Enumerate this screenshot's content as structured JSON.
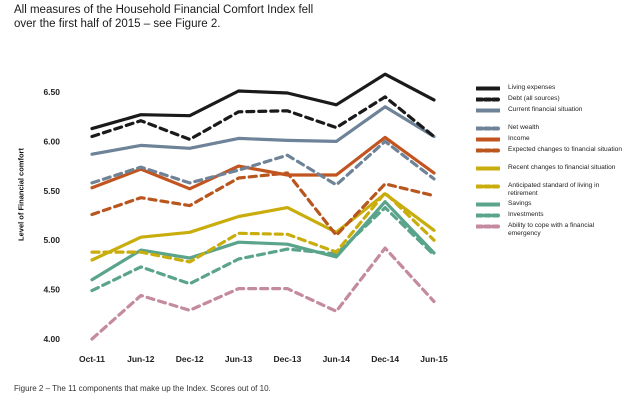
{
  "intro_text": "All measures of the Household Financial Comfort Index fell over the first half of 2015 – see Figure 2.",
  "caption": "Figure 2 – The 11 components that make up the Index. Scores out of 10.",
  "chart_data": {
    "type": "line",
    "title": "",
    "xlabel": "",
    "ylabel": "Level of Financial comfort",
    "ylim": [
      4.0,
      6.5
    ],
    "yticks": [
      "4.00",
      "4.50",
      "5.00",
      "5.50",
      "6.00",
      "6.50"
    ],
    "categories": [
      "Oct-11",
      "Jun-12",
      "Dec-12",
      "Jun-13",
      "Dec-13",
      "Jun-14",
      "Dec-14",
      "Jun-15"
    ],
    "grid": false,
    "legend_position": "right",
    "series": [
      {
        "name": "Living expenses",
        "color": "#1a1a1a",
        "style": "solid",
        "values": [
          6.13,
          6.27,
          6.26,
          6.51,
          6.49,
          6.37,
          6.68,
          6.42
        ]
      },
      {
        "name": "Debt (all sources)",
        "color": "#1a1a1a",
        "style": "dashed",
        "values": [
          6.05,
          6.21,
          6.02,
          6.3,
          6.31,
          6.14,
          6.45,
          6.05
        ]
      },
      {
        "name": "Current financial situation",
        "color": "#6e8398",
        "style": "solid",
        "values": [
          5.87,
          5.96,
          5.93,
          6.03,
          6.01,
          6.0,
          6.35,
          6.05
        ]
      },
      {
        "name": "Net wealth",
        "color": "#6e8398",
        "style": "dashed",
        "values": [
          5.58,
          5.74,
          5.58,
          5.71,
          5.86,
          5.56,
          6.0,
          5.62
        ]
      },
      {
        "name": "Income",
        "color": "#c2541f",
        "style": "solid",
        "values": [
          5.53,
          5.72,
          5.52,
          5.75,
          5.66,
          5.66,
          6.04,
          5.68
        ]
      },
      {
        "name": "Expected changes to financial situation",
        "color": "#b8561e",
        "style": "dashed",
        "values": [
          5.26,
          5.43,
          5.35,
          5.63,
          5.68,
          5.05,
          5.57,
          5.45
        ]
      },
      {
        "name": "Recent changes to financial situation",
        "color": "#c8ad0c",
        "style": "solid",
        "values": [
          4.8,
          5.03,
          5.08,
          5.24,
          5.33,
          5.08,
          5.47,
          5.1
        ]
      },
      {
        "name": "Anticipated standard of living in retirement",
        "color": "#c8ad0c",
        "style": "dashed",
        "values": [
          4.88,
          4.88,
          4.78,
          5.07,
          5.06,
          4.88,
          5.48,
          5.0
        ]
      },
      {
        "name": "Savings",
        "color": "#5aa48b",
        "style": "solid",
        "values": [
          4.6,
          4.9,
          4.82,
          4.98,
          4.96,
          4.83,
          5.39,
          4.87
        ]
      },
      {
        "name": "Investments",
        "color": "#5aa48b",
        "style": "dashed",
        "values": [
          4.49,
          4.73,
          4.56,
          4.81,
          4.91,
          4.86,
          5.33,
          4.85
        ]
      },
      {
        "name": "Ability to cope with a financial emergency",
        "color": "#c48aa0",
        "style": "dashed",
        "values": [
          4.0,
          4.44,
          4.29,
          4.51,
          4.51,
          4.28,
          4.92,
          4.38
        ]
      }
    ]
  }
}
